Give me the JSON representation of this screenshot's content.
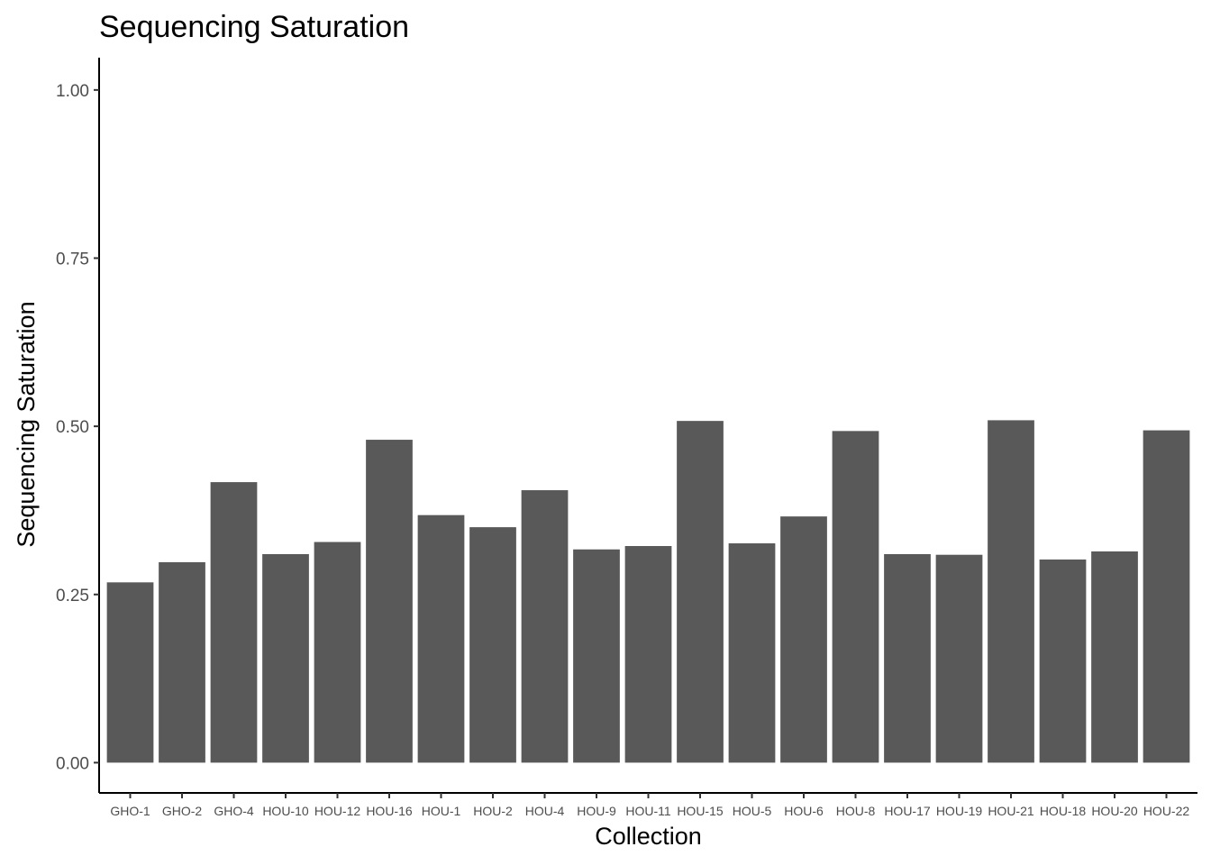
{
  "chart_data": {
    "type": "bar",
    "title": "Sequencing Saturation",
    "xlabel": "Collection",
    "ylabel": "Sequencing Saturation",
    "categories": [
      "GHO-1",
      "GHO-2",
      "GHO-4",
      "HOU-10",
      "HOU-12",
      "HOU-16",
      "HOU-1",
      "HOU-2",
      "HOU-4",
      "HOU-9",
      "HOU-11",
      "HOU-15",
      "HOU-5",
      "HOU-6",
      "HOU-8",
      "HOU-17",
      "HOU-19",
      "HOU-21",
      "HOU-18",
      "HOU-20",
      "HOU-22"
    ],
    "values": [
      0.268,
      0.298,
      0.417,
      0.31,
      0.328,
      0.48,
      0.368,
      0.35,
      0.405,
      0.317,
      0.322,
      0.508,
      0.326,
      0.366,
      0.493,
      0.31,
      0.309,
      0.509,
      0.302,
      0.314,
      0.494
    ],
    "ylim": [
      -0.045,
      1.048
    ],
    "yticks": [
      0.0,
      0.25,
      0.5,
      0.75,
      1.0
    ],
    "ytick_labels": [
      "0.00",
      "0.25",
      "0.50",
      "0.75",
      "1.00"
    ],
    "bar_color": "#595959",
    "grid": false,
    "legend": "none"
  }
}
